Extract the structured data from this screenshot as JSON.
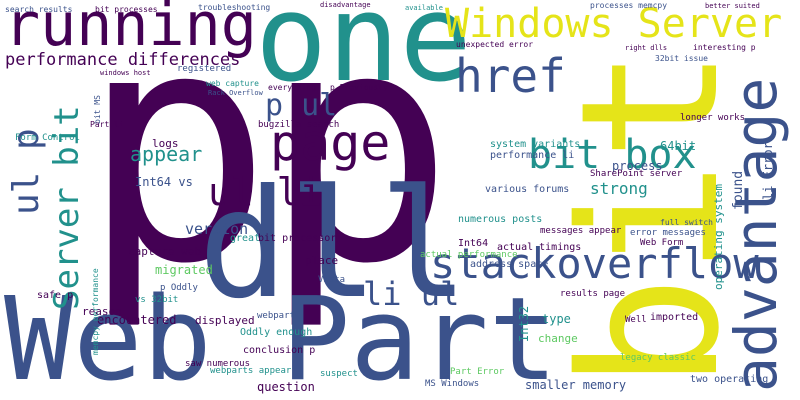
{
  "words": [
    {
      "text": "p",
      "color": "#440154"
    },
    {
      "text": "p",
      "color": "#440154"
    },
    {
      "text": "Web Part",
      "color": "#3b528b"
    },
    {
      "text": "one",
      "color": "#21918c"
    },
    {
      "text": "running",
      "color": "#440154"
    },
    {
      "text": "bit",
      "color": "#e5e419"
    },
    {
      "text": "Windows Server",
      "color": "#e5e419"
    },
    {
      "text": "dll",
      "color": "#3b528b"
    },
    {
      "text": "advantage",
      "color": "#3b528b"
    },
    {
      "text": "stackoverflow",
      "color": "#3b528b"
    },
    {
      "text": "href",
      "color": "#3b528b"
    },
    {
      "text": "bit box",
      "color": "#21918c"
    },
    {
      "text": "page",
      "color": "#440154"
    },
    {
      "text": "p ul",
      "color": "#3b528b"
    },
    {
      "text": "ul li",
      "color": "#440154"
    },
    {
      "text": "li ul",
      "color": "#3b528b"
    },
    {
      "text": "Server bit",
      "color": "#21918c"
    },
    {
      "text": "ul p",
      "color": "#3b528b"
    },
    {
      "text": "performance differences",
      "color": "#440154"
    },
    {
      "text": "appear",
      "color": "#21918c"
    },
    {
      "text": "version",
      "color": "#3b528b"
    },
    {
      "text": "strong",
      "color": "#21918c"
    },
    {
      "text": "process",
      "color": "#3b528b"
    },
    {
      "text": "64bit",
      "color": "#21918c"
    },
    {
      "text": "li Error",
      "color": "#3b528b"
    },
    {
      "text": "operating system",
      "color": "#21918c"
    },
    {
      "text": "found",
      "color": "#3b528b"
    },
    {
      "text": "Int64 vs",
      "color": "#3b528b"
    },
    {
      "text": "logs",
      "color": "#440154"
    },
    {
      "text": "capture web",
      "color": "#440154"
    },
    {
      "text": "migrated",
      "color": "#5ec962"
    },
    {
      "text": "encountered",
      "color": "#440154"
    },
    {
      "text": "displayed",
      "color": "#440154"
    },
    {
      "text": "conclusion p",
      "color": "#440154"
    },
    {
      "text": "question",
      "color": "#440154"
    },
    {
      "text": "Oddly enough",
      "color": "#21918c"
    },
    {
      "text": "webpart",
      "color": "#3b528b"
    },
    {
      "text": "place",
      "color": "#440154"
    },
    {
      "text": "Vista",
      "color": "#3b528b"
    },
    {
      "text": "reason",
      "color": "#440154"
    },
    {
      "text": "safe p",
      "color": "#440154"
    },
    {
      "text": "Form Control",
      "color": "#21918c"
    },
    {
      "text": "Int32",
      "color": "#21918c"
    },
    {
      "text": "type",
      "color": "#21918c"
    },
    {
      "text": "change",
      "color": "#5ec962"
    },
    {
      "text": "smaller memory",
      "color": "#3b528b"
    },
    {
      "text": "messages appear",
      "color": "#440154"
    },
    {
      "text": "actual timings",
      "color": "#440154"
    },
    {
      "text": "address space",
      "color": "#3b528b"
    },
    {
      "text": "numerous posts",
      "color": "#21918c"
    },
    {
      "text": "various forums",
      "color": "#3b528b"
    },
    {
      "text": "system variants",
      "color": "#21918c"
    },
    {
      "text": "performance li",
      "color": "#3b528b"
    },
    {
      "text": "search results",
      "color": "#3b528b"
    },
    {
      "text": "bit processes",
      "color": "#440154"
    },
    {
      "text": "troubleshooting",
      "color": "#3b528b"
    },
    {
      "text": "disadvantage",
      "color": "#440154"
    },
    {
      "text": "available",
      "color": "#21918c"
    },
    {
      "text": "processes memcpy",
      "color": "#3b528b"
    },
    {
      "text": "better suited",
      "color": "#440154"
    },
    {
      "text": "unexpected error",
      "color": "#440154"
    },
    {
      "text": "right dlls",
      "color": "#440154"
    },
    {
      "text": "32bit issue",
      "color": "#3b528b"
    },
    {
      "text": "interesting p",
      "color": "#440154"
    },
    {
      "text": "imported",
      "color": "#440154"
    },
    {
      "text": "Well",
      "color": "#440154"
    },
    {
      "text": "Web Form",
      "color": "#440154"
    },
    {
      "text": "error messages",
      "color": "#3b528b"
    },
    {
      "text": "full switch",
      "color": "#3b528b"
    },
    {
      "text": "MS Windows",
      "color": "#3b528b"
    },
    {
      "text": "Part Error",
      "color": "#5ec962"
    },
    {
      "text": "two operating",
      "color": "#3b528b"
    },
    {
      "text": "great",
      "color": "#21918c"
    },
    {
      "text": "bit processor",
      "color": "#440154"
    },
    {
      "text": "bugzilla search",
      "color": "#440154"
    },
    {
      "text": "everything",
      "color": "#440154"
    },
    {
      "text": "p Previously",
      "color": "#440154"
    },
    {
      "text": "web capture",
      "color": "#21918c"
    },
    {
      "text": "Rack Overflow",
      "color": "#3b528b"
    },
    {
      "text": "vs 32bit",
      "color": "#21918c"
    },
    {
      "text": "p Oddly",
      "color": "#3b528b"
    },
    {
      "text": "registered",
      "color": "#3b528b"
    },
    {
      "text": "bit MS",
      "color": "#3b528b"
    },
    {
      "text": "Part li",
      "color": "#440154"
    },
    {
      "text": "windows host",
      "color": "#440154"
    },
    {
      "text": "longer works",
      "color": "#440154"
    },
    {
      "text": "SharePoint server",
      "color": "#440154"
    },
    {
      "text": "legacy classic",
      "color": "#5ec962"
    },
    {
      "text": "results page",
      "color": "#440154"
    },
    {
      "text": "saw numerous",
      "color": "#440154"
    },
    {
      "text": "webparts appear",
      "color": "#21918c"
    },
    {
      "text": "suspect",
      "color": "#21918c"
    },
    {
      "text": "actual performance",
      "color": "#5ec962"
    },
    {
      "text": "memcpy performance",
      "color": "#21918c"
    },
    {
      "text": "Int64",
      "color": "#440154"
    }
  ]
}
